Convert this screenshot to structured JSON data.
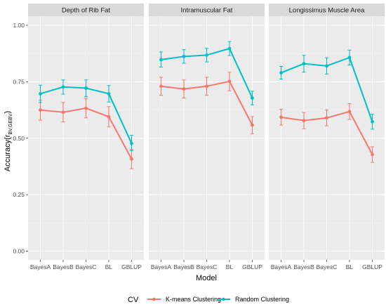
{
  "chart_data": {
    "type": "line",
    "xlabel": "Model",
    "ylabel": "Accuracy(r",
    "ylabel_sub": "BV,GEBV",
    "ylabel_close": ")",
    "ylim": [
      0,
      1
    ],
    "yticks": [
      "0.00",
      "0.25",
      "0.50",
      "0.75",
      "1.00"
    ],
    "ytick_values": [
      0,
      0.25,
      0.5,
      0.75,
      1.0
    ],
    "categories": [
      "BayesA",
      "BayesB",
      "BayesC",
      "BL",
      "GBLUP"
    ],
    "legend": {
      "title": "CV",
      "position": "bottom",
      "items": [
        "K-means Clustering",
        "Random Clustering"
      ]
    },
    "colors": {
      "K-means Clustering": "#F8766D",
      "Random Clustering": "#00BFC4"
    },
    "grid": true,
    "panels": [
      {
        "title": "Depth of Rib Fat",
        "series": [
          {
            "name": "K-means Clustering",
            "values": [
              0.625,
              0.615,
              0.633,
              0.595,
              0.408
            ],
            "lower": [
              0.58,
              0.572,
              0.59,
              0.55,
              0.365
            ],
            "upper": [
              0.668,
              0.658,
              0.676,
              0.64,
              0.45
            ]
          },
          {
            "name": "Random Clustering",
            "values": [
              0.697,
              0.727,
              0.722,
              0.697,
              0.477
            ],
            "lower": [
              0.658,
              0.695,
              0.684,
              0.66,
              0.445
            ],
            "upper": [
              0.735,
              0.758,
              0.758,
              0.733,
              0.513
            ]
          }
        ]
      },
      {
        "title": "Intramuscular Fat",
        "series": [
          {
            "name": "K-means Clustering",
            "values": [
              0.73,
              0.718,
              0.73,
              0.752,
              0.558
            ],
            "lower": [
              0.69,
              0.678,
              0.69,
              0.71,
              0.52
            ],
            "upper": [
              0.77,
              0.758,
              0.77,
              0.792,
              0.596
            ]
          },
          {
            "name": "Random Clustering",
            "values": [
              0.848,
              0.862,
              0.868,
              0.897,
              0.678
            ],
            "lower": [
              0.815,
              0.832,
              0.838,
              0.866,
              0.648
            ],
            "upper": [
              0.882,
              0.892,
              0.898,
              0.928,
              0.708
            ]
          }
        ]
      },
      {
        "title": "Longissimus Muscle Area",
        "series": [
          {
            "name": "K-means Clustering",
            "values": [
              0.593,
              0.578,
              0.59,
              0.618,
              0.428
            ],
            "lower": [
              0.558,
              0.542,
              0.555,
              0.583,
              0.393
            ],
            "upper": [
              0.628,
              0.614,
              0.625,
              0.653,
              0.462
            ]
          },
          {
            "name": "Random Clustering",
            "values": [
              0.79,
              0.83,
              0.82,
              0.857,
              0.573
            ],
            "lower": [
              0.762,
              0.793,
              0.784,
              0.824,
              0.54
            ],
            "upper": [
              0.818,
              0.867,
              0.856,
              0.89,
              0.606
            ]
          }
        ]
      }
    ]
  }
}
